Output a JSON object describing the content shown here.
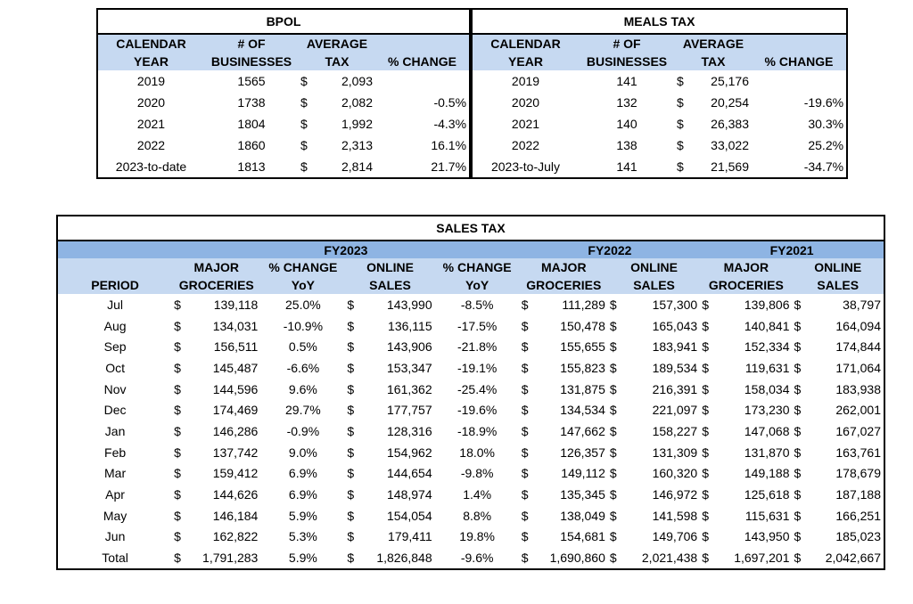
{
  "bpol": {
    "title": "BPOL",
    "headers": [
      [
        "CALENDAR",
        "YEAR"
      ],
      [
        "# OF",
        "BUSINESSES"
      ],
      [
        "AVERAGE",
        "TAX"
      ],
      [
        "",
        "% CHANGE"
      ]
    ],
    "rows": [
      {
        "year": "2019",
        "businesses": "1565",
        "dollar": "$",
        "tax": "2,093",
        "change": ""
      },
      {
        "year": "2020",
        "businesses": "1738",
        "dollar": "$",
        "tax": "2,082",
        "change": "-0.5%"
      },
      {
        "year": "2021",
        "businesses": "1804",
        "dollar": "$",
        "tax": "1,992",
        "change": "-4.3%"
      },
      {
        "year": "2022",
        "businesses": "1860",
        "dollar": "$",
        "tax": "2,313",
        "change": "16.1%"
      },
      {
        "year": "2023-to-date",
        "businesses": "1813",
        "dollar": "$",
        "tax": "2,814",
        "change": "21.7%"
      }
    ]
  },
  "meals": {
    "title": "MEALS TAX",
    "headers": [
      [
        "CALENDAR",
        "YEAR"
      ],
      [
        "# OF",
        "BUSINESSES"
      ],
      [
        "AVERAGE",
        "TAX"
      ],
      [
        "",
        "% CHANGE"
      ]
    ],
    "rows": [
      {
        "year": "2019",
        "businesses": "141",
        "dollar": "$",
        "tax": "25,176",
        "change": ""
      },
      {
        "year": "2020",
        "businesses": "132",
        "dollar": "$",
        "tax": "20,254",
        "change": "-19.6%"
      },
      {
        "year": "2021",
        "businesses": "140",
        "dollar": "$",
        "tax": "26,383",
        "change": "30.3%"
      },
      {
        "year": "2022",
        "businesses": "138",
        "dollar": "$",
        "tax": "33,022",
        "change": "25.2%"
      },
      {
        "year": "2023-to-July",
        "businesses": "141",
        "dollar": "$",
        "tax": "21,569",
        "change": "-34.7%"
      }
    ]
  },
  "sales": {
    "title": "SALES TAX",
    "fy": [
      "FY2023",
      "FY2022",
      "FY2021"
    ],
    "headers": {
      "period": "PERIOD",
      "major": [
        "MAJOR",
        "GROCERIES"
      ],
      "pct": [
        "% CHANGE",
        "YoY"
      ],
      "online": [
        "ONLINE",
        "SALES"
      ]
    },
    "dollar": "$",
    "rows": [
      {
        "period": "Jul",
        "g23": "139,118",
        "pg": "25.0%",
        "o23": "143,990",
        "po": "-8.5%",
        "g22": "111,289",
        "o22": "157,300",
        "g21": "139,806",
        "o21": "38,797"
      },
      {
        "period": "Aug",
        "g23": "134,031",
        "pg": "-10.9%",
        "o23": "136,115",
        "po": "-17.5%",
        "g22": "150,478",
        "o22": "165,043",
        "g21": "140,841",
        "o21": "164,094"
      },
      {
        "period": "Sep",
        "g23": "156,511",
        "pg": "0.5%",
        "o23": "143,906",
        "po": "-21.8%",
        "g22": "155,655",
        "o22": "183,941",
        "g21": "152,334",
        "o21": "174,844"
      },
      {
        "period": "Oct",
        "g23": "145,487",
        "pg": "-6.6%",
        "o23": "153,347",
        "po": "-19.1%",
        "g22": "155,823",
        "o22": "189,534",
        "g21": "119,631",
        "o21": "171,064"
      },
      {
        "period": "Nov",
        "g23": "144,596",
        "pg": "9.6%",
        "o23": "161,362",
        "po": "-25.4%",
        "g22": "131,875",
        "o22": "216,391",
        "g21": "158,034",
        "o21": "183,938"
      },
      {
        "period": "Dec",
        "g23": "174,469",
        "pg": "29.7%",
        "o23": "177,757",
        "po": "-19.6%",
        "g22": "134,534",
        "o22": "221,097",
        "g21": "173,230",
        "o21": "262,001"
      },
      {
        "period": "Jan",
        "g23": "146,286",
        "pg": "-0.9%",
        "o23": "128,316",
        "po": "-18.9%",
        "g22": "147,662",
        "o22": "158,227",
        "g21": "147,068",
        "o21": "167,027"
      },
      {
        "period": "Feb",
        "g23": "137,742",
        "pg": "9.0%",
        "o23": "154,962",
        "po": "18.0%",
        "g22": "126,357",
        "o22": "131,309",
        "g21": "131,870",
        "o21": "163,761"
      },
      {
        "period": "Mar",
        "g23": "159,412",
        "pg": "6.9%",
        "o23": "144,654",
        "po": "-9.8%",
        "g22": "149,112",
        "o22": "160,320",
        "g21": "149,188",
        "o21": "178,679"
      },
      {
        "period": "Apr",
        "g23": "144,626",
        "pg": "6.9%",
        "o23": "148,974",
        "po": "1.4%",
        "g22": "135,345",
        "o22": "146,972",
        "g21": "125,618",
        "o21": "187,188"
      },
      {
        "period": "May",
        "g23": "146,184",
        "pg": "5.9%",
        "o23": "154,054",
        "po": "8.8%",
        "g22": "138,049",
        "o22": "141,598",
        "g21": "115,631",
        "o21": "166,251"
      },
      {
        "period": "Jun",
        "g23": "162,822",
        "pg": "5.3%",
        "o23": "179,411",
        "po": "19.8%",
        "g22": "154,681",
        "o22": "149,706",
        "g21": "143,950",
        "o21": "185,023"
      },
      {
        "period": "Total",
        "g23": "1,791,283",
        "pg": "5.9%",
        "o23": "1,826,848",
        "po": "-9.6%",
        "g22": "1,690,860",
        "o22": "2,021,438",
        "g21": "1,697,201",
        "o21": "2,042,667"
      }
    ]
  }
}
